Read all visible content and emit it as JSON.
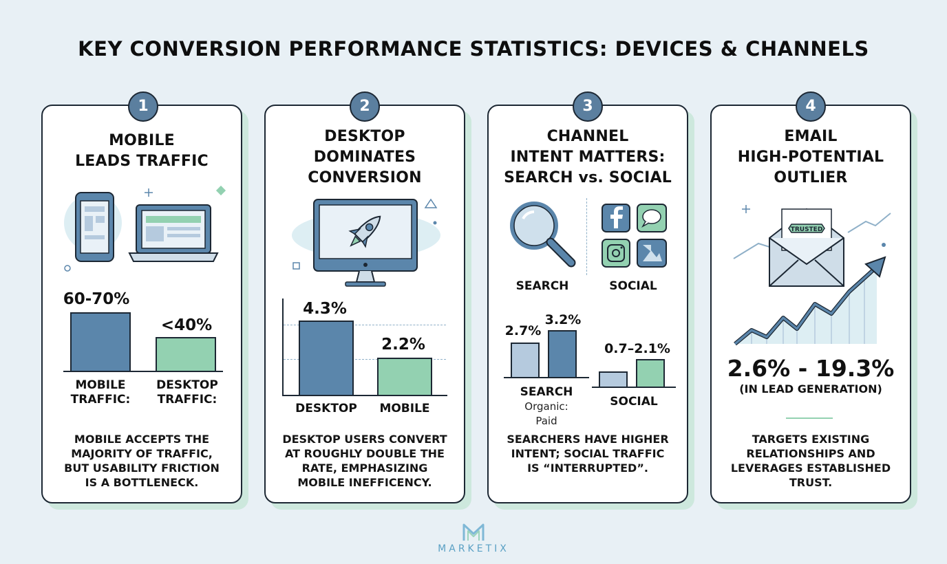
{
  "title": "KEY CONVERSION PERFORMANCE STATISTICS: DEVICES & CHANNELS",
  "colors": {
    "accent_blue": "#5b86ab",
    "accent_green": "#93d1b1",
    "light_blue": "#b5cade",
    "outline": "#1c2733"
  },
  "cards": [
    {
      "number": "1",
      "title_lines": [
        "MOBILE",
        "LEADS TRAFFIC"
      ],
      "icons": [
        "smartphone-icon",
        "laptop-icon"
      ],
      "stat_a": "60-70%",
      "stat_b": "<40%",
      "label_a_lines": [
        "MOBILE",
        "TRAFFIC:"
      ],
      "label_b_lines": [
        "DESKTOP",
        "TRAFFIC:"
      ],
      "desc_lines": [
        "MOBILE ACCEPTS THE",
        "MAJORITY OF TRAFFIC,",
        "BUT USABILITY FRICTION",
        "IS A BOTTLENECK."
      ]
    },
    {
      "number": "2",
      "title_lines": [
        "DESKTOP",
        "DOMINATES",
        "CONVERSION"
      ],
      "icons": [
        "desktop-monitor-icon",
        "rocket-icon"
      ],
      "stat_a": "4.3%",
      "stat_b": "2.2%",
      "label_a": "DESKTOP",
      "label_b": "MOBILE",
      "desc_lines": [
        "DESKTOP USERS CONVERT",
        "AT ROUGHLY DOUBLE THE",
        "RATE, EMPHASIZING",
        "MOBILE INEFFICENCY."
      ]
    },
    {
      "number": "3",
      "title_lines": [
        "CHANNEL",
        "INTENT MATTERS:",
        "SEARCH vs. SOCIAL"
      ],
      "icons": [
        "magnifier-icon",
        "facebook-icon",
        "chat-icon",
        "instagram-icon",
        "image-icon"
      ],
      "icon_label_a": "SEARCH",
      "icon_label_b": "SOCIAL",
      "stat_search_a": "2.7%",
      "stat_search_b": "3.2%",
      "stat_social": "0.7–2.1%",
      "label_search": "SEARCH",
      "label_search_sub_lines": [
        "Organic:",
        "Paid"
      ],
      "label_social": "SOCIAL",
      "desc_lines": [
        "SEARCHERS HAVE HIGHER",
        "INTENT; SOCIAL TRAFFIC",
        "IS “INTERRUPTED”."
      ]
    },
    {
      "number": "4",
      "title_lines": [
        "EMAIL",
        "HIGH-POTENTIAL",
        "OUTLIER"
      ],
      "icons": [
        "envelope-icon",
        "growth-chart-icon"
      ],
      "seal_text": "TRUSTED",
      "stat": "2.6% - 19.3%",
      "stat_sub": "(IN LEAD GENERATION)",
      "desc_lines": [
        "TARGETS EXISTING",
        "RELATIONSHIPS AND",
        "LEVERAGES ESTABLISHED",
        "TRUST."
      ]
    }
  ],
  "footer": {
    "logo_letter": "M",
    "brand": "MARKETIX"
  }
}
